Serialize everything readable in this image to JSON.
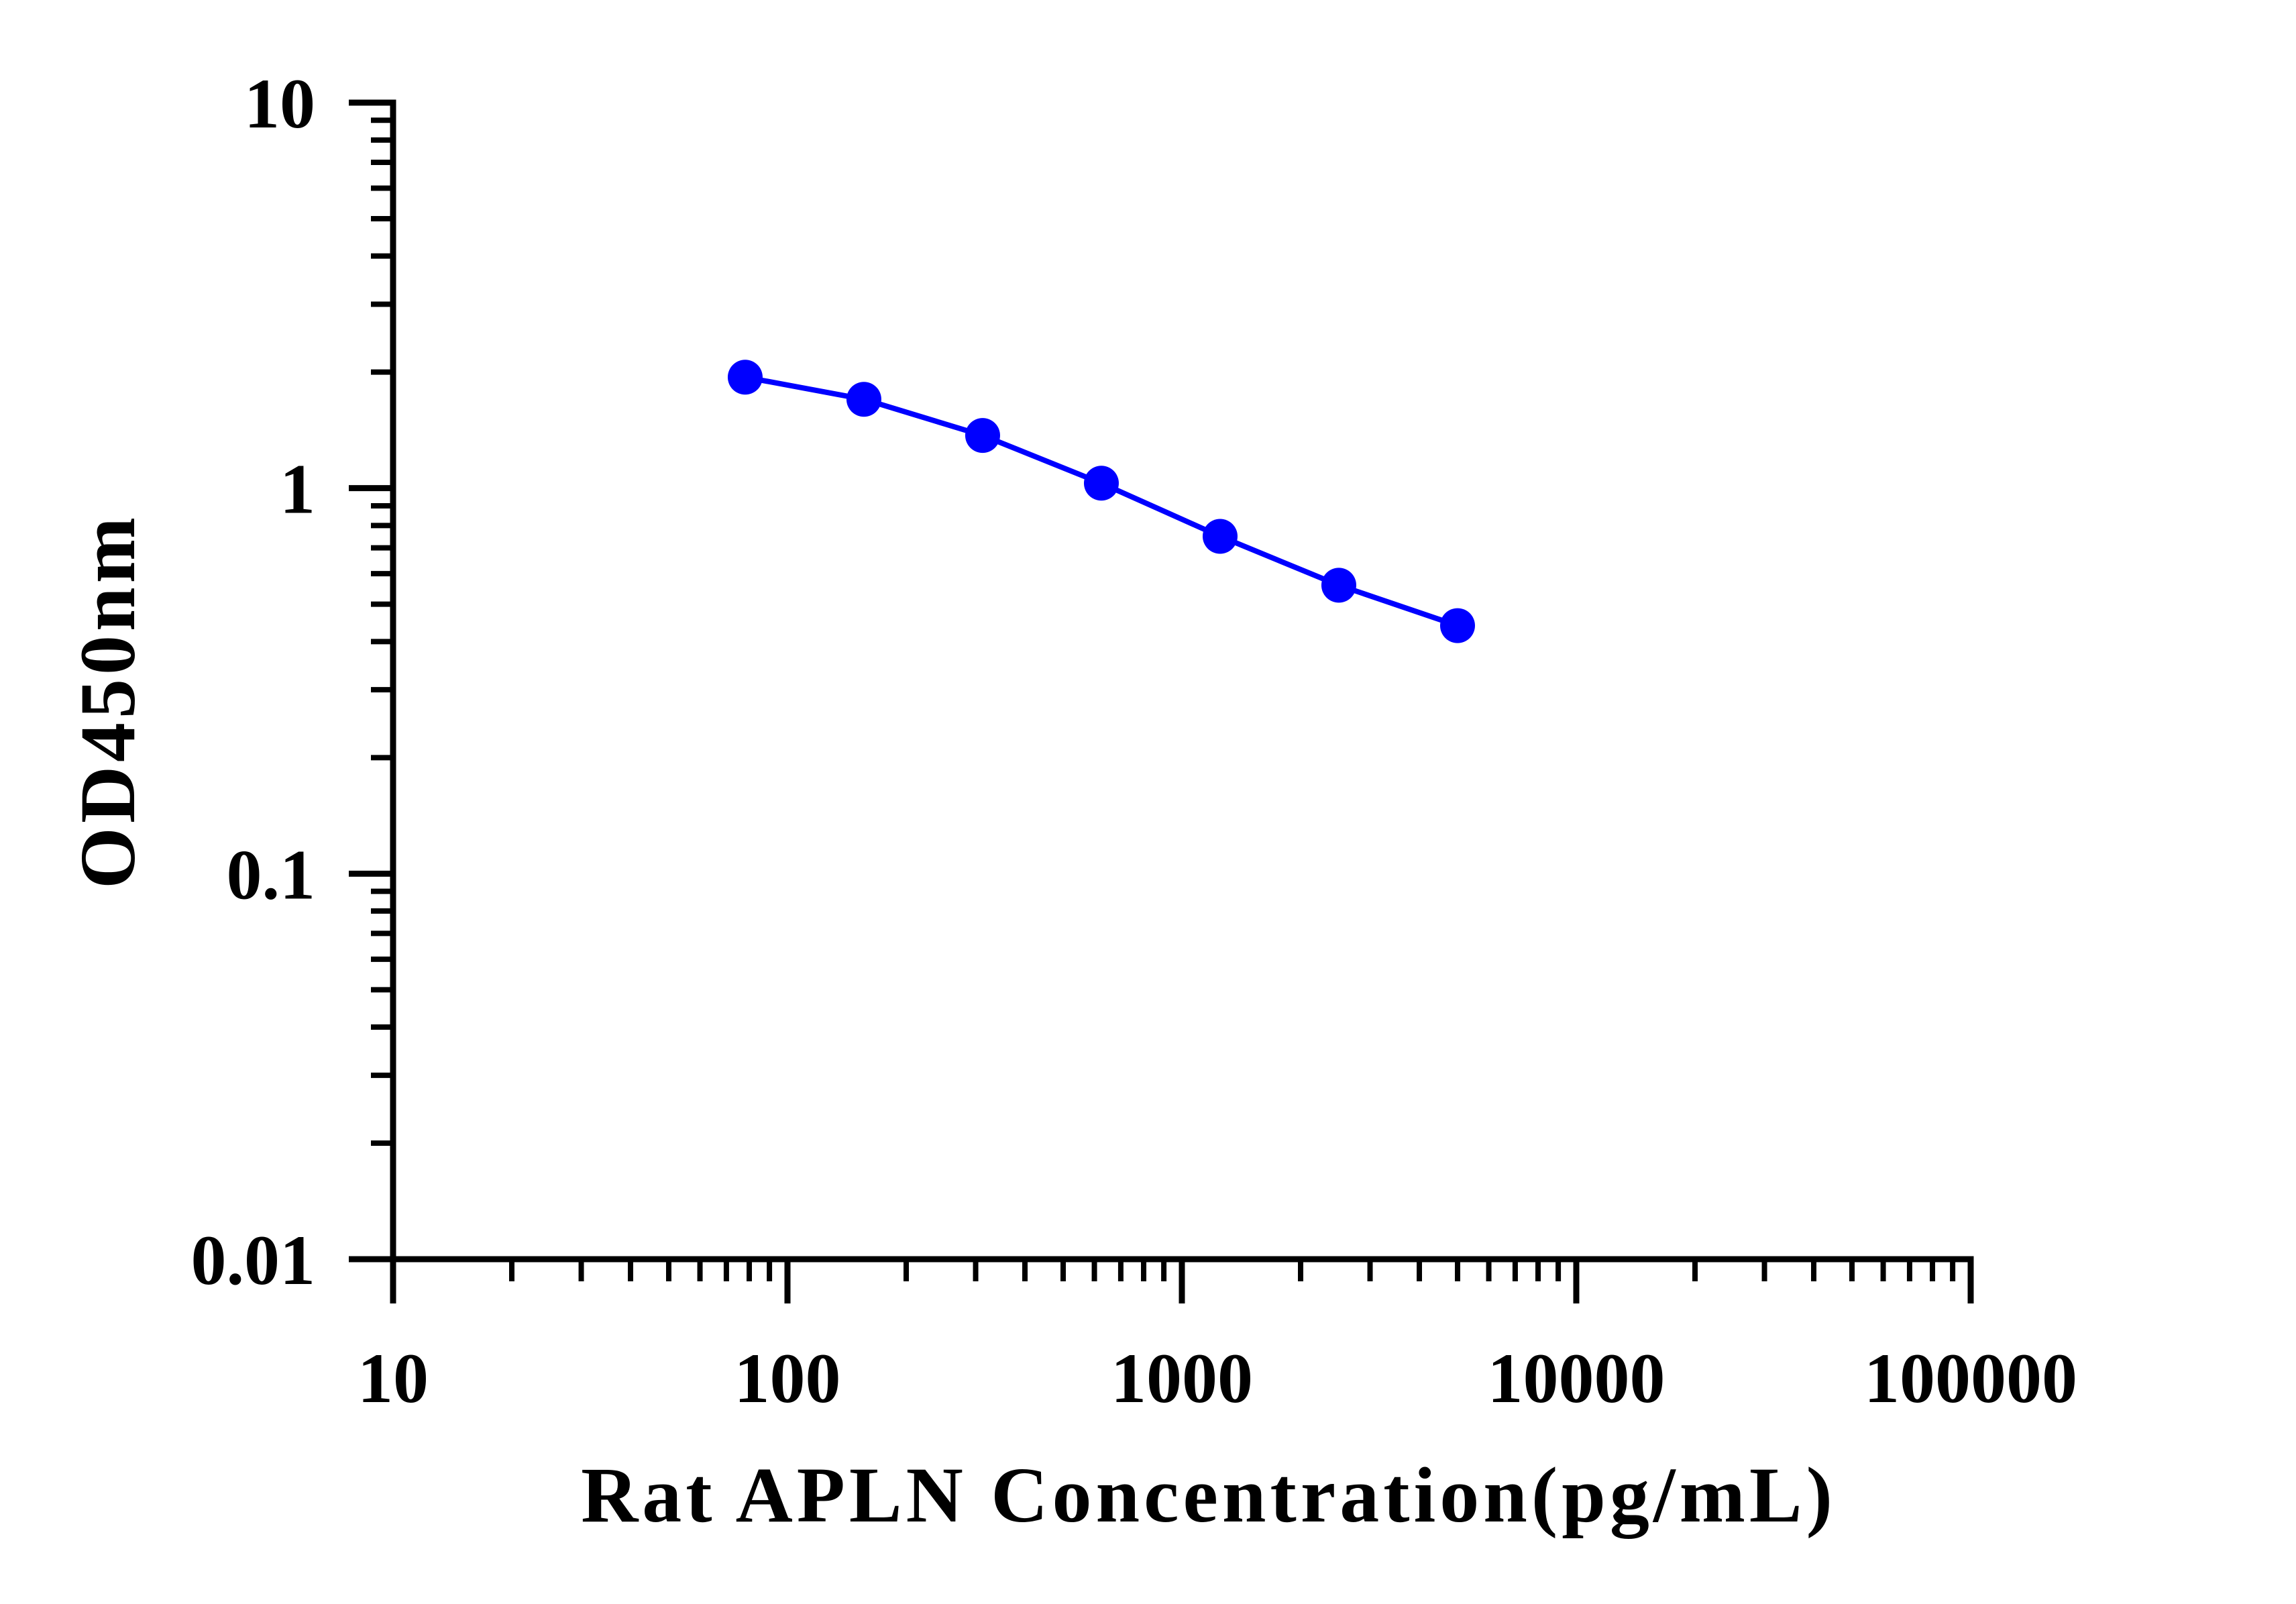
{
  "chart_data": {
    "type": "line",
    "xlabel": "Rat APLN Concentration(pg/mL)",
    "ylabel": "OD450nm",
    "x_scale": "log",
    "y_scale": "log",
    "xlim": [
      10,
      100000
    ],
    "ylim": [
      0.01,
      10
    ],
    "x_ticks": [
      10,
      100,
      1000,
      10000,
      100000
    ],
    "x_tick_labels": [
      "10",
      "100",
      "1000",
      "10000",
      "100000"
    ],
    "y_ticks": [
      0.01,
      0.1,
      1,
      10
    ],
    "y_tick_labels": [
      "0.01",
      "0.1",
      "1",
      "10"
    ],
    "grid": false,
    "series": [
      {
        "color": "#0000ff",
        "marker": "circle",
        "x": [
          78.125,
          156.25,
          312.5,
          625,
          1250,
          2500,
          5000
        ],
        "y": [
          1.94,
          1.7,
          1.37,
          1.03,
          0.75,
          0.56,
          0.44
        ]
      }
    ]
  }
}
